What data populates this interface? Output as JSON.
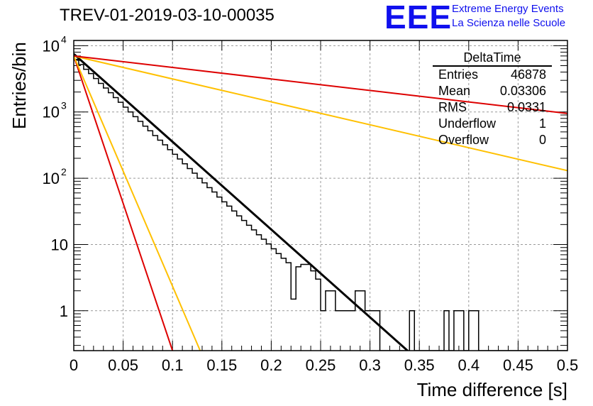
{
  "header": {
    "title": "TREV-01-2019-03-10-00035",
    "logo_text": "EEE",
    "org_line1": "Extreme Energy Events",
    "org_line2": "La Scienza nelle Scuole"
  },
  "stats": {
    "name": "DeltaTime",
    "rows": [
      {
        "label": "Entries",
        "value": "46878"
      },
      {
        "label": "Mean",
        "value": "0.03306"
      },
      {
        "label": "RMS",
        "value": "0.0331"
      },
      {
        "label": "Underflow",
        "value": "1"
      },
      {
        "label": "Overflow",
        "value": "0"
      }
    ]
  },
  "colors": {
    "fit": "#000000",
    "red": "#dd0000",
    "yellow": "#ffc000",
    "grid": "#999999",
    "logo": "#1010ee"
  },
  "chart_data": {
    "type": "line",
    "title": "TREV-01-2019-03-10-00035",
    "xlabel": "Time difference [s]",
    "ylabel": "Entries/bin",
    "xlim": [
      0,
      0.5
    ],
    "ylim": [
      0.25,
      12000
    ],
    "yscale": "log",
    "grid": true,
    "x_ticks": [
      "0",
      "0.05",
      "0.1",
      "0.15",
      "0.2",
      "0.25",
      "0.3",
      "0.35",
      "0.4",
      "0.45",
      "0.5"
    ],
    "y_ticks": [
      {
        "value": 1,
        "label": "1"
      },
      {
        "value": 10,
        "label": "10"
      },
      {
        "value": 100,
        "label": "10",
        "exp": "2"
      },
      {
        "value": 1000,
        "label": "10",
        "exp": "3"
      },
      {
        "value": 10000,
        "label": "10",
        "exp": "4"
      }
    ],
    "histogram": {
      "bin_width": 0.005,
      "counts": [
        6200,
        5200,
        4400,
        3800,
        3200,
        2700,
        2300,
        1950,
        1650,
        1400,
        1180,
        1000,
        850,
        720,
        610,
        520,
        440,
        375,
        320,
        270,
        230,
        195,
        165,
        140,
        119,
        100,
        85,
        72,
        62,
        52,
        44,
        38,
        32,
        27,
        23,
        19.5,
        16.6,
        14,
        12,
        10.2,
        8.6,
        7.3,
        6.2,
        5.3,
        1.5,
        4.6,
        5,
        5,
        4,
        3,
        1,
        2,
        2,
        1,
        1,
        1,
        1,
        2,
        2,
        1,
        1,
        1,
        0,
        0,
        0,
        0,
        0,
        0,
        1,
        0,
        0,
        0,
        0,
        0,
        0,
        1,
        0,
        1,
        1,
        0,
        1,
        1,
        0,
        0,
        0,
        0,
        0,
        0,
        0,
        0,
        0,
        0,
        0,
        0,
        0,
        0,
        0,
        0,
        0,
        0
      ]
    },
    "series": [
      {
        "type": "fit",
        "color": "black",
        "x": [
          0,
          0.338
        ],
        "y": [
          7500,
          0.25
        ]
      },
      {
        "type": "line",
        "color": "red",
        "x": [
          0,
          0.1
        ],
        "y": [
          7000,
          0.25
        ]
      },
      {
        "type": "line",
        "color": "yellow",
        "x": [
          0,
          0.128
        ],
        "y": [
          7000,
          0.25
        ]
      },
      {
        "type": "line",
        "color": "yellow",
        "x": [
          0,
          0.5
        ],
        "y": [
          7000,
          130
        ]
      },
      {
        "type": "line",
        "color": "red",
        "x": [
          0,
          0.5
        ],
        "y": [
          7000,
          950
        ]
      }
    ]
  }
}
